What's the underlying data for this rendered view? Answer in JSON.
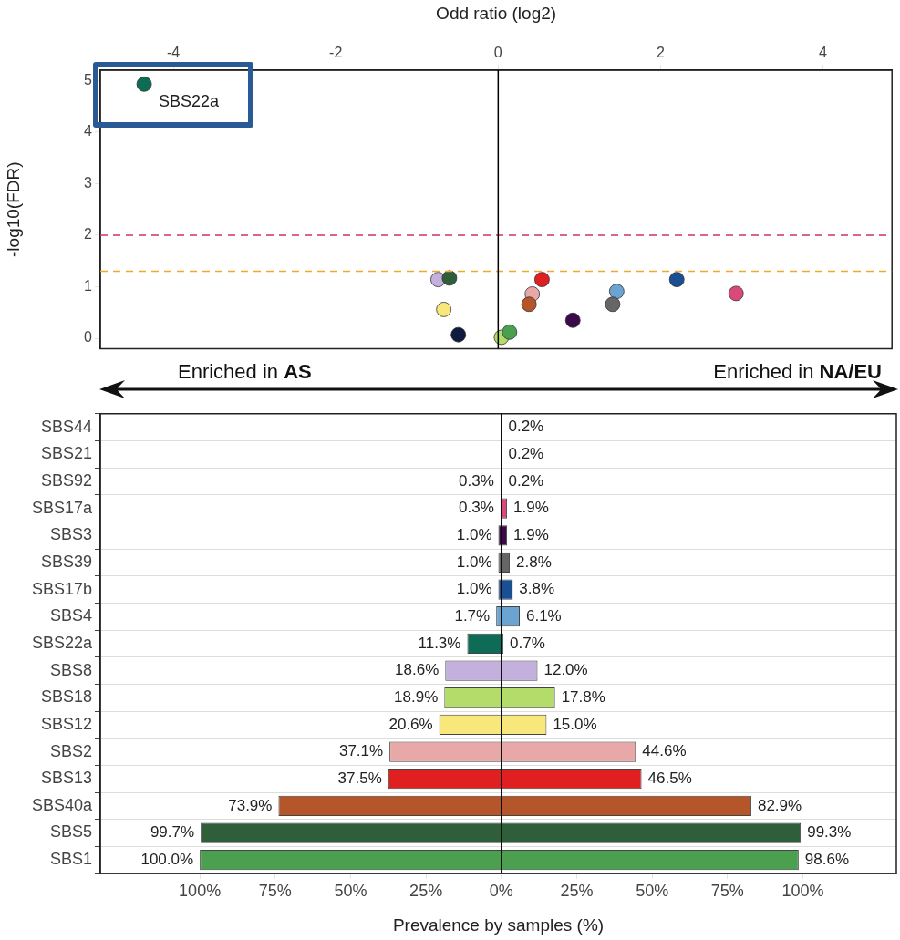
{
  "chart_data": [
    {
      "type": "scatter",
      "xlabel": "Odd ratio (log2)",
      "ylabel": "-log10(FDR)",
      "xlim": [
        -4.9,
        4.85
      ],
      "xticks": [
        -4,
        -2,
        0,
        2,
        4
      ],
      "ylim": [
        -0.2,
        5.2
      ],
      "yticks": [
        0,
        1,
        2,
        3,
        4,
        5
      ],
      "marker": "circle",
      "series": [
        {
          "x": [
            -4.36,
            -0.74,
            -0.6,
            -0.67,
            -0.49,
            0.04,
            0.14,
            0.54,
            0.42,
            0.38,
            0.92,
            1.46,
            1.41,
            2.2,
            2.93
          ],
          "values": [
            4.93,
            1.14,
            1.17,
            0.56,
            0.07,
            0.02,
            0.12,
            1.14,
            0.86,
            0.66,
            0.35,
            0.91,
            0.66,
            1.14,
            0.87
          ],
          "colors": [
            "#0e6b55",
            "#c3b0dc",
            "#2e5e3a",
            "#f8e77a",
            "#0e1a40",
            "#b3dc6a",
            "#4aa04f",
            "#e02020",
            "#e8a8a8",
            "#b5562a",
            "#3a0b48",
            "#6ba3d3",
            "#666666",
            "#1a4f94",
            "#d94a7a"
          ]
        }
      ],
      "ref_lines": [
        {
          "axis": "y",
          "value": 2,
          "color": "#cc3366",
          "line_style": "dashed"
        },
        {
          "axis": "y",
          "value": 1.3,
          "color": "#f0a830",
          "line_style": "dashed"
        },
        {
          "axis": "x",
          "value": 0,
          "color": "#000000"
        }
      ],
      "annotations": [
        {
          "text": "SBS22a",
          "x": -4.36,
          "y": 4.93
        },
        "Enriched in AS",
        "Enriched in NA/EU"
      ]
    },
    {
      "type": "bar",
      "orientation": "horizontal",
      "xlabel": "Prevalence by samples (%)",
      "xlim": [
        -133,
        131
      ],
      "xticks": [
        {
          "value": -100,
          "label": "100%"
        },
        {
          "value": -75,
          "label": "75%"
        },
        {
          "value": -50,
          "label": "50%"
        },
        {
          "value": -25,
          "label": "25%"
        },
        {
          "value": 0,
          "label": "0%"
        },
        {
          "value": 25,
          "label": "25%"
        },
        {
          "value": 50,
          "label": "50%"
        },
        {
          "value": 75,
          "label": "75%"
        },
        {
          "value": 100,
          "label": "100%"
        }
      ],
      "grid": "y",
      "categories": [
        "SBS44",
        "SBS21",
        "SBS92",
        "SBS17a",
        "SBS3",
        "SBS39",
        "SBS17b",
        "SBS4",
        "SBS22a",
        "SBS8",
        "SBS18",
        "SBS12",
        "SBS2",
        "SBS13",
        "SBS40a",
        "SBS5",
        "SBS1"
      ],
      "series": [
        {
          "values": [
            null,
            null,
            0.3,
            0.3,
            1.0,
            1.0,
            1.0,
            1.7,
            11.3,
            18.6,
            18.9,
            20.6,
            37.1,
            37.5,
            73.9,
            99.7,
            100.0
          ],
          "base": [
            null,
            null,
            -0.3,
            -0.3,
            -1.0,
            -1.0,
            -1.0,
            -1.7,
            -11.3,
            -18.6,
            -18.9,
            -20.6,
            -37.1,
            -37.5,
            -73.9,
            -99.7,
            -100.0
          ],
          "value_labels": [
            null,
            null,
            "0.3%",
            "0.3%",
            "1.0%",
            "1.0%",
            "1.0%",
            "1.7%",
            "11.3%",
            "18.6%",
            "18.9%",
            "20.6%",
            "37.1%",
            "37.5%",
            "73.9%",
            "99.7%",
            "100.0%"
          ],
          "colors": [
            "#888888",
            "#888888",
            "#888888",
            "#d94a7a",
            "#3a0b48",
            "#666666",
            "#1a4f94",
            "#6ba3d3",
            "#0e6b55",
            "#c3b0dc",
            "#b3dc6a",
            "#f8e77a",
            "#e8a8a8",
            "#e02020",
            "#b5562a",
            "#2e5e3a",
            "#4aa04f"
          ]
        },
        {
          "values": [
            0.2,
            0.2,
            0.2,
            1.9,
            1.9,
            2.8,
            3.8,
            6.1,
            0.7,
            12.0,
            17.8,
            15.0,
            44.6,
            46.5,
            82.9,
            99.3,
            98.6
          ],
          "value_labels": [
            "0.2%",
            "0.2%",
            "0.2%",
            "1.9%",
            "1.9%",
            "2.8%",
            "3.8%",
            "6.1%",
            "0.7%",
            "12.0%",
            "17.8%",
            "15.0%",
            "44.6%",
            "46.5%",
            "82.9%",
            "99.3%",
            "98.6%"
          ],
          "colors": [
            "#888888",
            "#888888",
            "#888888",
            "#d94a7a",
            "#3a0b48",
            "#666666",
            "#1a4f94",
            "#6ba3d3",
            "#0e6b55",
            "#c3b0dc",
            "#b3dc6a",
            "#f8e77a",
            "#e8a8a8",
            "#e02020",
            "#b5562a",
            "#2e5e3a",
            "#4aa04f"
          ]
        }
      ],
      "ref_lines": [
        {
          "axis": "x",
          "value": 0,
          "color": "#000000"
        }
      ]
    }
  ]
}
